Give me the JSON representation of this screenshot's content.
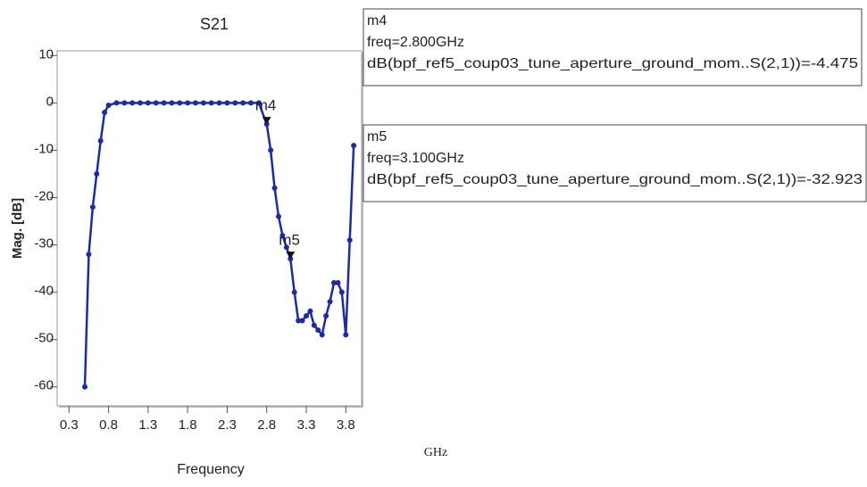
{
  "chart_data": {
    "type": "line",
    "title": "S21",
    "xlabel": "Frequency",
    "ylabel": "Mag. [dB]",
    "unit_note": "GHz",
    "color": "#1a2aae",
    "xlim": [
      0.15,
      4.0
    ],
    "ylim": [
      -64,
      11
    ],
    "xticks": [
      0.3,
      0.8,
      1.3,
      1.8,
      2.3,
      2.8,
      3.3,
      3.8
    ],
    "yticks": [
      10,
      0,
      -10,
      -20,
      -30,
      -40,
      -50,
      -60
    ],
    "x": [
      0.5,
      0.55,
      0.6,
      0.65,
      0.7,
      0.75,
      0.8,
      0.9,
      1.0,
      1.1,
      1.2,
      1.3,
      1.4,
      1.5,
      1.6,
      1.7,
      1.8,
      1.9,
      2.0,
      2.1,
      2.2,
      2.3,
      2.4,
      2.5,
      2.6,
      2.7,
      2.8,
      2.85,
      2.9,
      2.95,
      3.0,
      3.05,
      3.1,
      3.15,
      3.2,
      3.25,
      3.3,
      3.35,
      3.4,
      3.45,
      3.5,
      3.55,
      3.6,
      3.65,
      3.7,
      3.75,
      3.8,
      3.85,
      3.9
    ],
    "values": [
      -60,
      -32,
      -22,
      -15,
      -8,
      -2,
      -0.5,
      0,
      0,
      0,
      0,
      0,
      0,
      0,
      0,
      0,
      0,
      0,
      0,
      0,
      0,
      0,
      0,
      0,
      0,
      0,
      -4.475,
      -10,
      -18,
      -24,
      -28,
      -30.5,
      -32.923,
      -40,
      -46,
      -46,
      -45,
      -44,
      -47,
      -48,
      -49,
      -45,
      -42,
      -38,
      -38,
      -40,
      -49,
      -29,
      -9
    ],
    "markers": [
      {
        "label": "m4",
        "x": 2.8,
        "y": -4.475,
        "readout": [
          "m4",
          "freq=2.800GHz",
          "dB(bpf_ref5_coup03_tune_aperture_ground_mom..S(2,1))=-4.475"
        ]
      },
      {
        "label": "m5",
        "x": 3.1,
        "y": -32.923,
        "readout": [
          "m5",
          "freq=3.100GHz",
          "dB(bpf_ref5_coup03_tune_aperture_ground_mom..S(2,1))=-32.923"
        ]
      }
    ]
  }
}
